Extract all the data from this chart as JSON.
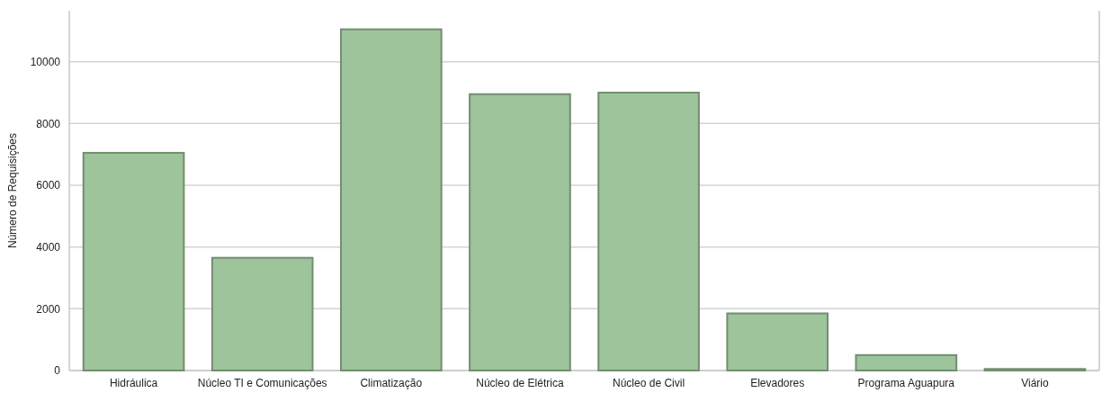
{
  "chart_data": {
    "type": "bar",
    "ylabel": "Número de Requisições",
    "categories": [
      "Hidráulica",
      "Núcleo TI e Comunicações",
      "Climatização",
      "Núcleo de Elétrica",
      "Núcleo de Civil",
      "Elevadores",
      "Programa Aguapura",
      "Viário"
    ],
    "values": [
      7050,
      3650,
      11050,
      8950,
      9000,
      1850,
      500,
      50
    ],
    "color": "#9dc49a",
    "ylim": [
      0,
      11650
    ],
    "yticks": [
      0,
      2000,
      4000,
      6000,
      8000,
      10000
    ],
    "grid": "y"
  }
}
